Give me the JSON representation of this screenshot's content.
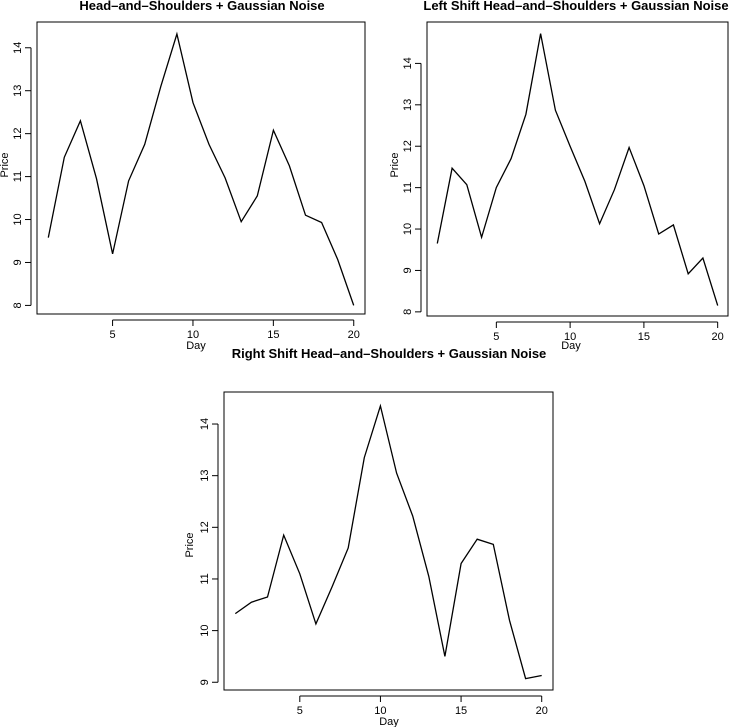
{
  "chart_data": [
    {
      "type": "line",
      "title": "Head–and–Shoulders + Gaussian Noise",
      "xlabel": "Day",
      "ylabel": "Price",
      "xlim": [
        0.3,
        20.7
      ],
      "ylim": [
        7.8,
        14.6
      ],
      "xticks": [
        5,
        10,
        15,
        20
      ],
      "yticks": [
        8,
        9,
        10,
        11,
        12,
        13,
        14
      ],
      "grid": false,
      "x": [
        1,
        2,
        3,
        4,
        5,
        6,
        7,
        8,
        9,
        10,
        11,
        12,
        13,
        14,
        15,
        16,
        17,
        18,
        19,
        20
      ],
      "series": [
        {
          "values": [
            9.58,
            11.45,
            12.3,
            10.95,
            9.2,
            10.9,
            11.75,
            13.1,
            14.32,
            12.72,
            11.75,
            10.97,
            9.95,
            10.55,
            12.08,
            11.25,
            10.1,
            9.93,
            9.07,
            8.0
          ]
        }
      ]
    },
    {
      "type": "line",
      "title": "Left Shift Head–and–Shoulders + Gaussian Noise",
      "xlabel": "Day",
      "ylabel": "Price",
      "xlim": [
        0.3,
        20.7
      ],
      "ylim": [
        7.9,
        15.0
      ],
      "xticks": [
        5,
        10,
        15,
        20
      ],
      "yticks": [
        8,
        9,
        10,
        11,
        12,
        13,
        14
      ],
      "grid": false,
      "x": [
        1,
        2,
        3,
        4,
        5,
        6,
        7,
        8,
        9,
        10,
        11,
        12,
        13,
        14,
        15,
        16,
        17,
        18,
        19,
        20
      ],
      "series": [
        {
          "values": [
            9.65,
            11.47,
            11.07,
            9.8,
            11.0,
            11.7,
            12.77,
            14.72,
            12.87,
            12.0,
            11.15,
            10.13,
            10.95,
            11.97,
            11.05,
            9.88,
            10.1,
            8.92,
            9.3,
            8.15
          ]
        }
      ]
    },
    {
      "type": "line",
      "title": "Right Shift Head–and–Shoulders + Gaussian Noise",
      "xlabel": "Day",
      "ylabel": "Price",
      "xlim": [
        0.3,
        20.7
      ],
      "ylim": [
        8.85,
        14.62
      ],
      "xticks": [
        5,
        10,
        15,
        20
      ],
      "yticks": [
        9,
        10,
        11,
        12,
        13,
        14
      ],
      "grid": false,
      "x": [
        1,
        2,
        3,
        4,
        5,
        6,
        7,
        8,
        9,
        10,
        11,
        12,
        13,
        14,
        15,
        16,
        17,
        18,
        19,
        20
      ],
      "series": [
        {
          "values": [
            10.33,
            10.55,
            10.65,
            11.85,
            11.1,
            10.13,
            10.85,
            11.6,
            13.35,
            14.35,
            13.05,
            12.22,
            11.05,
            9.5,
            11.3,
            11.77,
            11.67,
            10.2,
            9.07,
            9.13
          ]
        }
      ]
    }
  ]
}
